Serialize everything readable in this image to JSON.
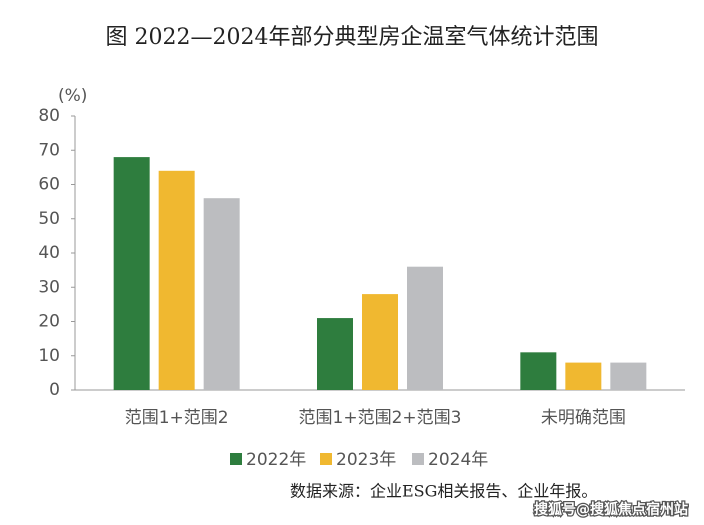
{
  "chart_data": {
    "type": "bar",
    "title": "图   2022—2024年部分典型房企温室气体统计范围",
    "y_label": "(%)",
    "categories": [
      "范围1+范围2",
      "范围1+范围2+范围3",
      "未明确范围"
    ],
    "series": [
      {
        "name": "2022年",
        "color": "#2e7d3e",
        "values": [
          68,
          21,
          11
        ]
      },
      {
        "name": "2023年",
        "color": "#f0b830",
        "values": [
          64,
          28,
          8
        ]
      },
      {
        "name": "2024年",
        "color": "#bcbdc0",
        "values": [
          56,
          36,
          8
        ]
      }
    ],
    "ylim": [
      0,
      80
    ],
    "yticks": [
      0,
      10,
      20,
      30,
      40,
      50,
      60,
      70,
      80
    ],
    "grid": false,
    "source": "数据来源：企业ESG相关报告、企业年报。",
    "watermark": "搜狐号@搜狐焦点宿州站"
  }
}
